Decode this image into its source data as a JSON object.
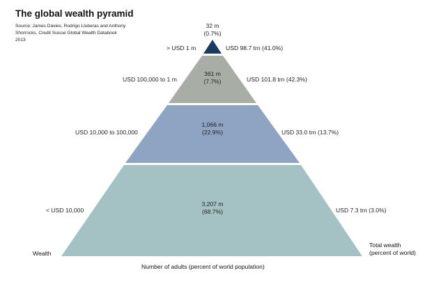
{
  "header": {
    "title": "The global wealth pyramid",
    "source": "Source: James Davies, Rodrigo Lluberas and Anthony Shorrocks, Credit Suisse Global Wealth Databook 2013"
  },
  "colors": {
    "tier1": "#1b3a5f",
    "tier2": "#a8ada5",
    "tier3": "#8fa3c3",
    "tier4": "#a4c1c3",
    "edge": "#ffffff"
  },
  "tiers": [
    {
      "wealth_range": "> USD 1 m",
      "adults": "32 m",
      "adults_pct": "(0.7%)",
      "total_wealth": "USD 98.7 trn (41.0%)"
    },
    {
      "wealth_range": "USD 100,000 to 1 m",
      "adults": "361 m",
      "adults_pct": "(7.7%)",
      "total_wealth": "USD 101.8 trn (42.3%)"
    },
    {
      "wealth_range": "USD 10,000 to 100,000",
      "adults": "1,066 m",
      "adults_pct": "(22.9%)",
      "total_wealth": "USD 33.0 trn (13.7%)"
    },
    {
      "wealth_range": "< USD 10,000",
      "adults": "3,207 m",
      "adults_pct": "(68.7%)",
      "total_wealth": "USD 7.3 trn (3.0%)"
    }
  ],
  "axes": {
    "left": "Wealth",
    "right_line1": "Total wealth",
    "right_line2": "(percent of world)",
    "bottom": "Number of adults (percent of world population)"
  }
}
